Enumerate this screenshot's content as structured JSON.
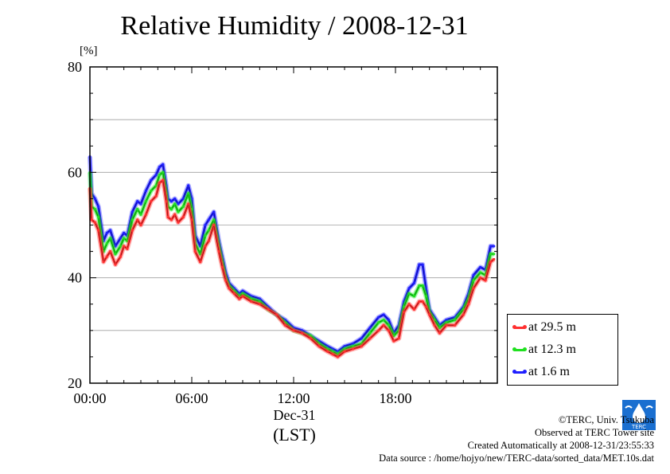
{
  "header": {
    "title": "Relative Humidity / 2008-12-31",
    "unit": "[%]"
  },
  "axis": {
    "xlabel_date": "Dec-31",
    "xlabel_tz": "(LST)"
  },
  "credits": {
    "line1": "©TERC, Univ. Tsukuba",
    "line2": "Observed at TERC Tower site",
    "line3": "Created Automatically at 2008-12-31/23:55:33",
    "line4": "Data source : /home/hojyo/new/TERC-data/sorted_data/MET.10s.dat"
  },
  "logo": {
    "icon": "terc-logo-icon",
    "text": "TERC"
  },
  "chart_data": {
    "type": "line",
    "title": "Relative Humidity / 2008-12-31",
    "ylabel": "[%]",
    "xlabel": "Dec-31 (LST)",
    "xlim": [
      0,
      24
    ],
    "ylim": [
      20,
      80
    ],
    "x_ticks": [
      "00:00",
      "06:00",
      "12:00",
      "18:00"
    ],
    "y_ticks": [
      "20",
      "40",
      "60",
      "80"
    ],
    "grid": true,
    "legend_position": "right",
    "x_hours": [
      0,
      0.1,
      0.3,
      0.5,
      0.8,
      1.0,
      1.2,
      1.5,
      1.8,
      2.0,
      2.2,
      2.5,
      2.8,
      3.0,
      3.3,
      3.6,
      3.9,
      4.1,
      4.3,
      4.5,
      4.6,
      4.8,
      5.0,
      5.2,
      5.5,
      5.8,
      6.0,
      6.2,
      6.5,
      6.8,
      7.0,
      7.3,
      7.6,
      7.8,
      8.0,
      8.2,
      8.5,
      8.8,
      9.0,
      9.5,
      10.0,
      10.5,
      11.0,
      11.5,
      12.0,
      12.5,
      13.0,
      13.5,
      14.0,
      14.3,
      14.6,
      15.0,
      15.5,
      16.0,
      16.5,
      17.0,
      17.3,
      17.6,
      17.9,
      18.2,
      18.5,
      18.8,
      19.1,
      19.4,
      19.6,
      19.8,
      20.0,
      20.3,
      20.6,
      21.0,
      21.5,
      22.0,
      22.3,
      22.6,
      23.0,
      23.3,
      23.6,
      23.8
    ],
    "series": [
      {
        "name": "at 29.5 m",
        "color": "#ff3030",
        "values": [
          57,
          51,
          50.5,
          49,
          43,
          44,
          45,
          42.5,
          44,
          46,
          45.5,
          49,
          51,
          50,
          52,
          54.5,
          55.5,
          58,
          58.5,
          54.5,
          51.5,
          51,
          52,
          50.5,
          51.5,
          54,
          51,
          45,
          43,
          46,
          47,
          50,
          45,
          42,
          39.5,
          38,
          37,
          36,
          36.5,
          35.5,
          35,
          34,
          33,
          31,
          30,
          29.5,
          28.5,
          27,
          26,
          25.5,
          25,
          26,
          26.5,
          27,
          28.5,
          30,
          31,
          30,
          28,
          28.5,
          33.5,
          35,
          34,
          35.5,
          35.5,
          34.5,
          33,
          31,
          29.5,
          31,
          31,
          33,
          35,
          38,
          40,
          39.5,
          43,
          43.5
        ]
      },
      {
        "name": "at 12.3 m",
        "color": "#20e020",
        "values": [
          60,
          53.5,
          53,
          51.5,
          45,
          46.5,
          47.5,
          44.5,
          46,
          47.5,
          47,
          51,
          53,
          52,
          54.5,
          56.5,
          57.5,
          59.5,
          60,
          56,
          53.5,
          53,
          54,
          52.5,
          53.5,
          56,
          53,
          46.5,
          44.5,
          48,
          49,
          51,
          46,
          43,
          40,
          38.5,
          37.5,
          36.5,
          37,
          36,
          35.5,
          34,
          33,
          31.5,
          30,
          29.5,
          29,
          27.5,
          26.5,
          26,
          25.5,
          26.5,
          27,
          27.5,
          29.5,
          31.5,
          32,
          31,
          29,
          30,
          34.5,
          37,
          36.5,
          38.5,
          38.5,
          36.5,
          33.5,
          32,
          30.5,
          31.5,
          32,
          34,
          36,
          39.5,
          41,
          40.5,
          44.5,
          44.5
        ]
      },
      {
        "name": "at 1.6 m",
        "color": "#2020ff",
        "values": [
          63,
          56,
          55,
          53.5,
          47,
          48.5,
          49,
          46,
          47.5,
          48.5,
          48,
          52.5,
          54.5,
          54,
          56.5,
          58.5,
          59.5,
          61,
          61.5,
          57.5,
          55,
          54.5,
          55,
          54,
          55,
          57.5,
          55,
          48,
          46,
          50,
          51,
          52.5,
          47,
          44,
          41,
          39,
          38,
          37,
          37.5,
          36.5,
          36,
          34.5,
          33,
          32,
          30.5,
          30,
          29,
          28,
          27,
          26.5,
          26,
          27,
          27.5,
          28.5,
          30.5,
          32.5,
          33,
          32,
          29.5,
          31,
          35.5,
          38,
          39,
          42.5,
          42.5,
          38,
          34,
          32.5,
          31,
          32,
          32.5,
          34.5,
          37,
          40.5,
          42,
          41.5,
          46,
          46
        ]
      }
    ]
  }
}
